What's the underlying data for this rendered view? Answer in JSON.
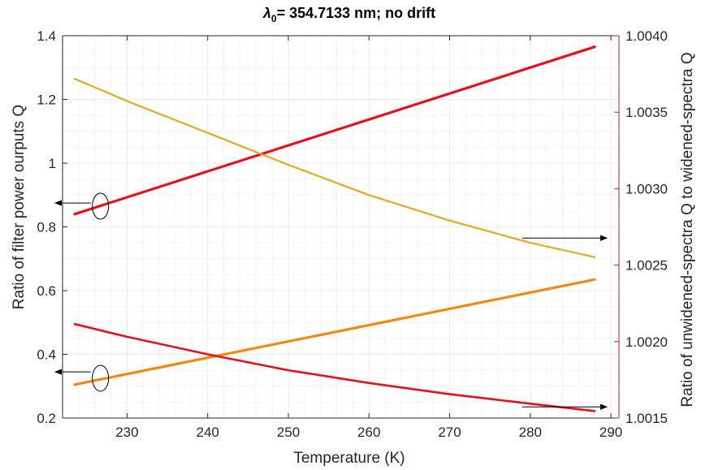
{
  "chart_data": {
    "type": "line",
    "title": "= 354.7133 nm; no drift",
    "title_symbol": "λ",
    "title_subscript": "0",
    "xlabel": "Temperature (K)",
    "ylabel_left": "Ratio of filter power ourputs Q",
    "ylabel_right": "Ratio of unwidened-spectra Q to widened-spectra Q",
    "xlim": [
      222,
      291
    ],
    "ylim_left": [
      0.2,
      1.4
    ],
    "ylim_right": [
      1.0015,
      1.004
    ],
    "xticks": [
      "230",
      "240",
      "250",
      "260",
      "270",
      "280",
      "290"
    ],
    "yticks_left": [
      "0.2",
      "0.4",
      "0.6",
      "0.8",
      "1",
      "1.2",
      "1.4"
    ],
    "yticks_right": [
      "1.0015",
      "1.0020",
      "1.0025",
      "1.0030",
      "1.0035",
      "1.0040"
    ],
    "grid": true,
    "minor_grid": true,
    "series": [
      {
        "axis": "left",
        "color": "#e8101a",
        "width": 3.2,
        "x": [
          223.5,
          288
        ],
        "y": [
          0.84,
          1.365
        ]
      },
      {
        "axis": "left",
        "color": "#f28a12",
        "width": 3.2,
        "x": [
          223.5,
          288
        ],
        "y": [
          0.305,
          0.635
        ]
      },
      {
        "axis": "left",
        "color": "#e8a91e",
        "width": 2.2,
        "x": [
          223.5,
          230,
          240,
          250,
          260,
          270,
          280,
          288
        ],
        "y": [
          1.265,
          1.195,
          1.095,
          0.995,
          0.9,
          0.82,
          0.75,
          0.705
        ]
      },
      {
        "axis": "left",
        "color": "#e8101a",
        "width": 2.6,
        "x": [
          223.5,
          230,
          240,
          250,
          260,
          270,
          280,
          288
        ],
        "y": [
          0.495,
          0.455,
          0.4,
          0.35,
          0.31,
          0.275,
          0.245,
          0.222
        ]
      }
    ],
    "annotations": [
      {
        "marker": "ellipse",
        "at": [
          226.7,
          0.865
        ],
        "arrow_to": [
          223.5,
          0.875
        ],
        "direction": "left"
      },
      {
        "marker": "ellipse",
        "at": [
          226.7,
          0.325
        ],
        "arrow_to": [
          223.5,
          0.345
        ],
        "direction": "left"
      },
      {
        "marker": "none",
        "arrow_from": [
          279,
          0.765
        ],
        "arrow_to": [
          289.5,
          0.765
        ],
        "direction": "right"
      },
      {
        "marker": "none",
        "arrow_from": [
          279,
          0.235
        ],
        "arrow_to": [
          289.5,
          0.235
        ],
        "direction": "right"
      }
    ],
    "colors": {
      "right_axis": "#c0202a",
      "grid": "#ececec",
      "minor_grid": "#f4f4f4"
    }
  }
}
